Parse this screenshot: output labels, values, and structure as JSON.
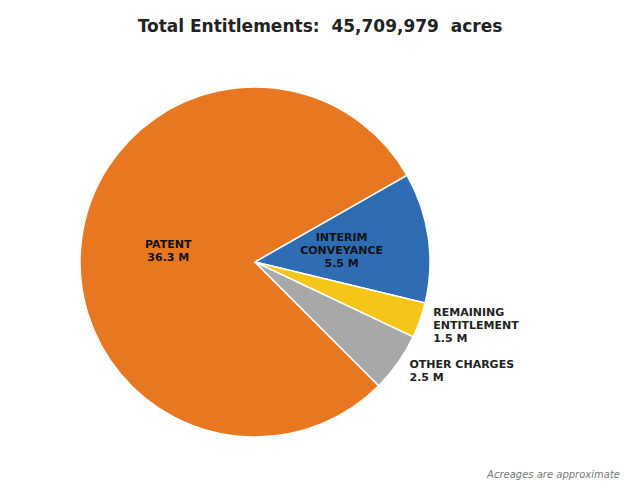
{
  "chart_data": {
    "type": "pie",
    "title": "Total Entitlements:  45,709,979  acres",
    "categories": [
      "PATENT",
      "INTERIM\nCONVEYANCE",
      "REMAINING\nENTITLEMENT",
      "OTHER CHARGES"
    ],
    "values": [
      36.3,
      5.5,
      1.5,
      2.5
    ],
    "value_labels": [
      "36.3 M",
      "5.5 M",
      "1.5 M",
      "2.5 M"
    ],
    "data_labels": true,
    "colors": [
      "#E87722",
      "#2E6DB4",
      "#F5C518",
      "#A8A8A8"
    ],
    "annotation": "Acreages are approximate"
  }
}
